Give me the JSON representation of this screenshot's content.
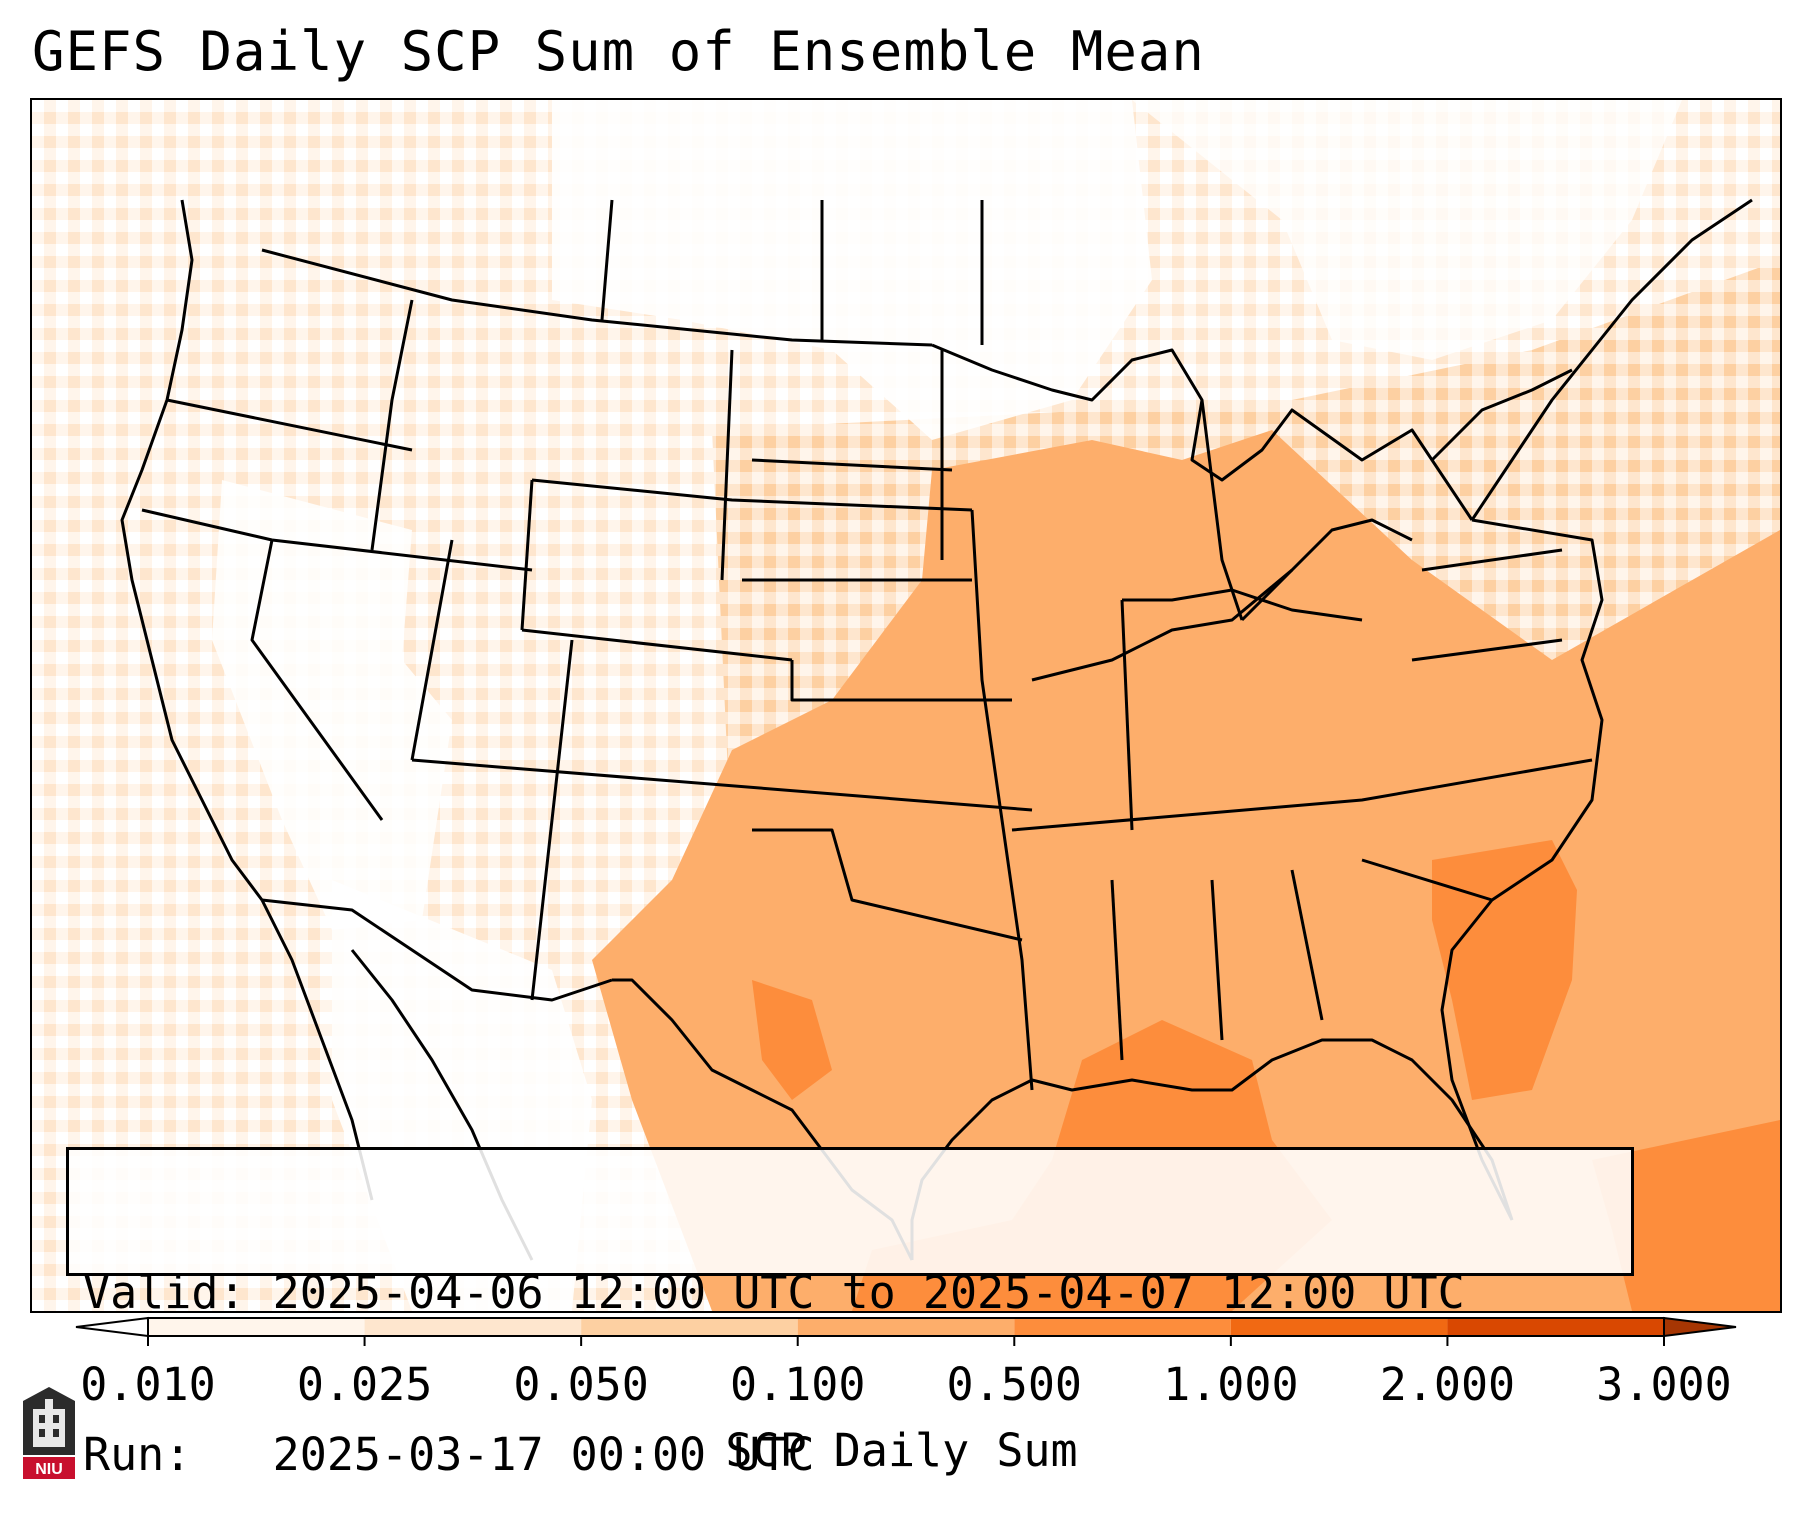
{
  "title": "GEFS Daily SCP Sum of Ensemble Mean",
  "info": {
    "valid_line": "Valid: 2025-04-06 12:00 UTC to 2025-04-07 12:00 UTC",
    "run_line": "Run:   2025-03-17 00:00 UTC"
  },
  "colorbar": {
    "label": "SCP Daily Sum",
    "ticks": [
      "0.010",
      "0.025",
      "0.050",
      "0.100",
      "0.500",
      "1.000",
      "2.000",
      "3.000"
    ],
    "colors": [
      "#fff5eb",
      "#fee6ce",
      "#fdd0a2",
      "#fdae6b",
      "#fd8d3c",
      "#f16913",
      "#d94801"
    ],
    "under_color": "#ffffff",
    "over_color": "#a63603",
    "extend": "both"
  },
  "map": {
    "region": "CONUS",
    "field": "GEFS ensemble-mean daily SCP sum",
    "highest_values_area": "Gulf of Mexico, western Atlantic off Georgia/Carolinas (0.5-1.0)",
    "moderate_values_area": "Southern Plains, Mississippi/Ohio Valleys, Southeast (0.1-0.5)"
  },
  "logo": {
    "text": "NIU"
  }
}
